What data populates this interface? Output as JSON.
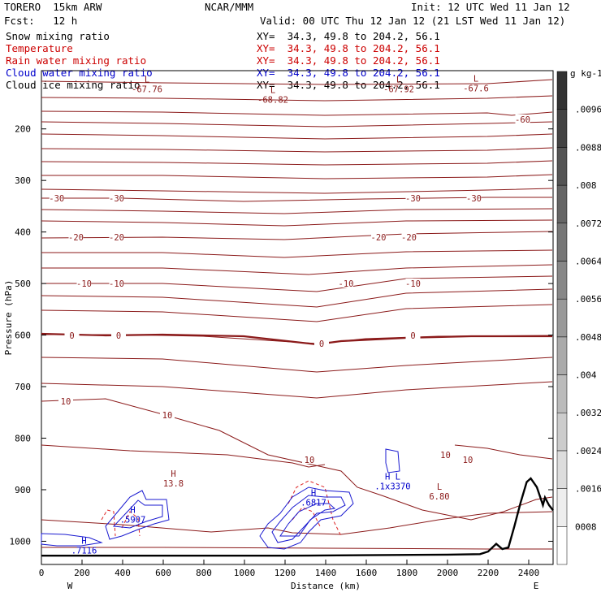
{
  "header": {
    "model": "TORERO  15km ARW",
    "org": "NCAR/MMM",
    "init": "Init: 12 UTC Wed 11 Jan 12",
    "fcst": "Fcst:   12 h",
    "valid": "Valid: 00 UTC Thu 12 Jan 12 (21 LST Wed 11 Jan 12)"
  },
  "legend_rows": [
    {
      "name": "Snow mixing ratio",
      "xy": "XY=  34.3, 49.8 to 204.2, 56.1",
      "color": "#000000"
    },
    {
      "name": "Temperature",
      "xy": "XY=  34.3, 49.8 to 204.2, 56.1",
      "color": "#cc0000"
    },
    {
      "name": "Rain water mixing ratio",
      "xy": "XY=  34.3, 49.8 to 204.2, 56.1",
      "color": "#cc0000"
    },
    {
      "name": "Cloud water mixing ratio",
      "xy": "XY=  34.3, 49.8 to 204.2, 56.1",
      "color": "#0000cc"
    },
    {
      "name": "Cloud ice mixing ratio",
      "xy": "XY=  34.3, 49.8 to 204.2, 56.1",
      "color": "#000000"
    }
  ],
  "colorbar": {
    "unit": "g kg-1",
    "ticks": [
      "0008",
      ".0016",
      ".0024",
      ".0032",
      ".004",
      ".0048",
      ".0056",
      ".0064",
      ".0072",
      ".008",
      ".0088",
      ".0096"
    ]
  },
  "chart_data": {
    "type": "contour",
    "xlabel": "Distance (km)",
    "ylabel": "Pressure (hPa)",
    "xlim": [
      0,
      2520
    ],
    "ylim": [
      1045,
      87
    ],
    "x_ticks": [
      0,
      200,
      400,
      600,
      800,
      1000,
      1200,
      1400,
      1600,
      1800,
      2000,
      2200,
      2400
    ],
    "y_ticks": [
      200,
      300,
      400,
      500,
      600,
      700,
      800,
      900,
      1000
    ],
    "x_end_labels": {
      "left": "W",
      "right": "E"
    },
    "temperature_isotherms": [
      {
        "level": -60,
        "labels": [
          {
            "text": "-60",
            "x": 2370
          }
        ]
      },
      {
        "level": -30,
        "labels": [
          {
            "text": "-30",
            "x": 75
          },
          {
            "text": "-30",
            "x": 370
          },
          {
            "text": "-30",
            "x": 1830
          },
          {
            "text": "-30",
            "x": 2130
          }
        ]
      },
      {
        "level": -20,
        "labels": [
          {
            "text": "-20",
            "x": 170
          },
          {
            "text": "-20",
            "x": 370
          },
          {
            "text": "-20",
            "x": 1660
          },
          {
            "text": "-20",
            "x": 1810
          }
        ]
      },
      {
        "level": -10,
        "labels": [
          {
            "text": "-10",
            "x": 210
          },
          {
            "text": "-10",
            "x": 370
          },
          {
            "text": "-10",
            "x": 1500
          },
          {
            "text": "-10",
            "x": 1830
          }
        ]
      },
      {
        "level": 0,
        "labels": [
          {
            "text": "0",
            "x": 150
          },
          {
            "text": "0",
            "x": 380
          },
          {
            "text": "0",
            "x": 1380
          },
          {
            "text": "0",
            "x": 1830
          }
        ]
      },
      {
        "level": 10,
        "labels": [
          {
            "text": "10",
            "x": 120
          },
          {
            "text": "10",
            "x": 620
          },
          {
            "text": "10",
            "x": 1320
          },
          {
            "text": "10",
            "x": 1990
          },
          {
            "text": "10",
            "x": 2100
          }
        ]
      }
    ],
    "extrema_labels": [
      {
        "kind": "L",
        "value": "-67.76",
        "x": 520,
        "p": 110,
        "color": "#8b1a1a"
      },
      {
        "kind": "L",
        "value": "-68.82",
        "x": 1140,
        "p": 130,
        "color": "#8b1a1a"
      },
      {
        "kind": "L",
        "value": "-67.92",
        "x": 1760,
        "p": 110,
        "color": "#8b1a1a"
      },
      {
        "kind": "L",
        "value": "-67.6",
        "x": 2140,
        "p": 108,
        "color": "#8b1a1a"
      },
      {
        "kind": "H",
        "value": "13.8",
        "x": 650,
        "p": 875,
        "color": "#8b1a1a"
      },
      {
        "kind": "L",
        "value": "6.80",
        "x": 1960,
        "p": 900,
        "color": "#8b1a1a"
      },
      {
        "kind": "H",
        "value": ".6817",
        "x": 1340,
        "p": 912,
        "color": "#0000cc"
      },
      {
        "kind": "H",
        "value": ".5907",
        "x": 450,
        "p": 945,
        "color": "#0000cc"
      },
      {
        "kind": "H",
        "value": ".7116",
        "x": 210,
        "p": 1005,
        "color": "#0000cc"
      },
      {
        "kind": "H L",
        "value": ".1x3370",
        "x": 1730,
        "p": 880,
        "color": "#0000cc"
      }
    ],
    "terrain_pressure": [
      [
        0,
        1028
      ],
      [
        400,
        1028
      ],
      [
        800,
        1028
      ],
      [
        1200,
        1028
      ],
      [
        1600,
        1027
      ],
      [
        2000,
        1026
      ],
      [
        2160,
        1025
      ],
      [
        2200,
        1020
      ],
      [
        2240,
        1005
      ],
      [
        2270,
        1015
      ],
      [
        2300,
        1012
      ],
      [
        2330,
        970
      ],
      [
        2360,
        925
      ],
      [
        2390,
        885
      ],
      [
        2410,
        878
      ],
      [
        2440,
        895
      ],
      [
        2470,
        930
      ],
      [
        2480,
        915
      ],
      [
        2500,
        930
      ],
      [
        2520,
        940
      ]
    ]
  }
}
